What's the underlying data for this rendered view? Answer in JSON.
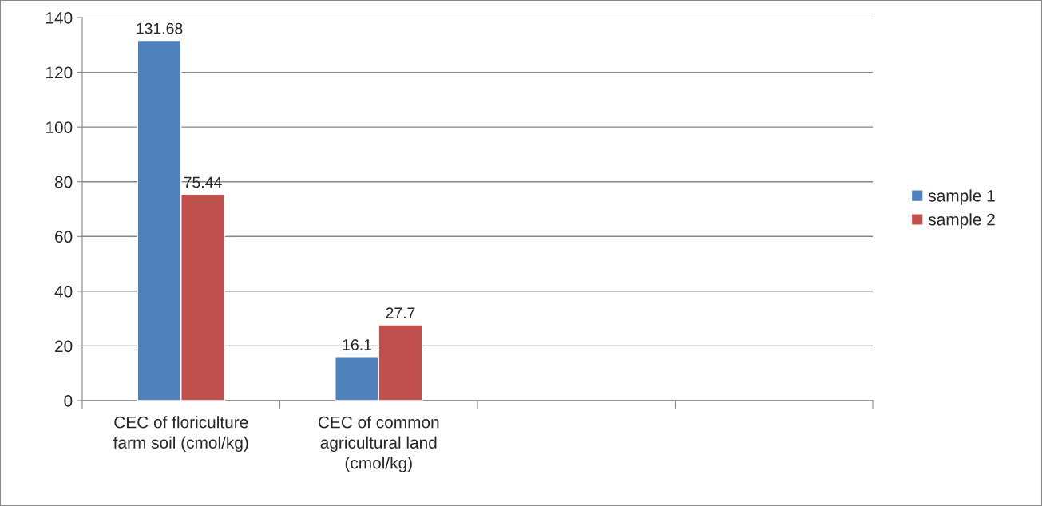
{
  "chart_data": {
    "type": "bar",
    "categories": [
      "CEC of floriculture farm soil (cmol/kg)",
      "CEC of common agricultural land (cmol/kg)",
      null,
      null
    ],
    "series": [
      {
        "name": "sample 1",
        "color": "#4f81bd",
        "values": [
          131.68,
          16.1,
          null,
          null
        ]
      },
      {
        "name": "sample 2",
        "color": "#c0504d",
        "values": [
          75.44,
          27.7,
          null,
          null
        ]
      }
    ],
    "ylim": [
      0,
      140
    ],
    "yticks": [
      0,
      20,
      40,
      60,
      80,
      100,
      120,
      140
    ],
    "grid": "y",
    "legend": "right",
    "data_labels": true
  }
}
